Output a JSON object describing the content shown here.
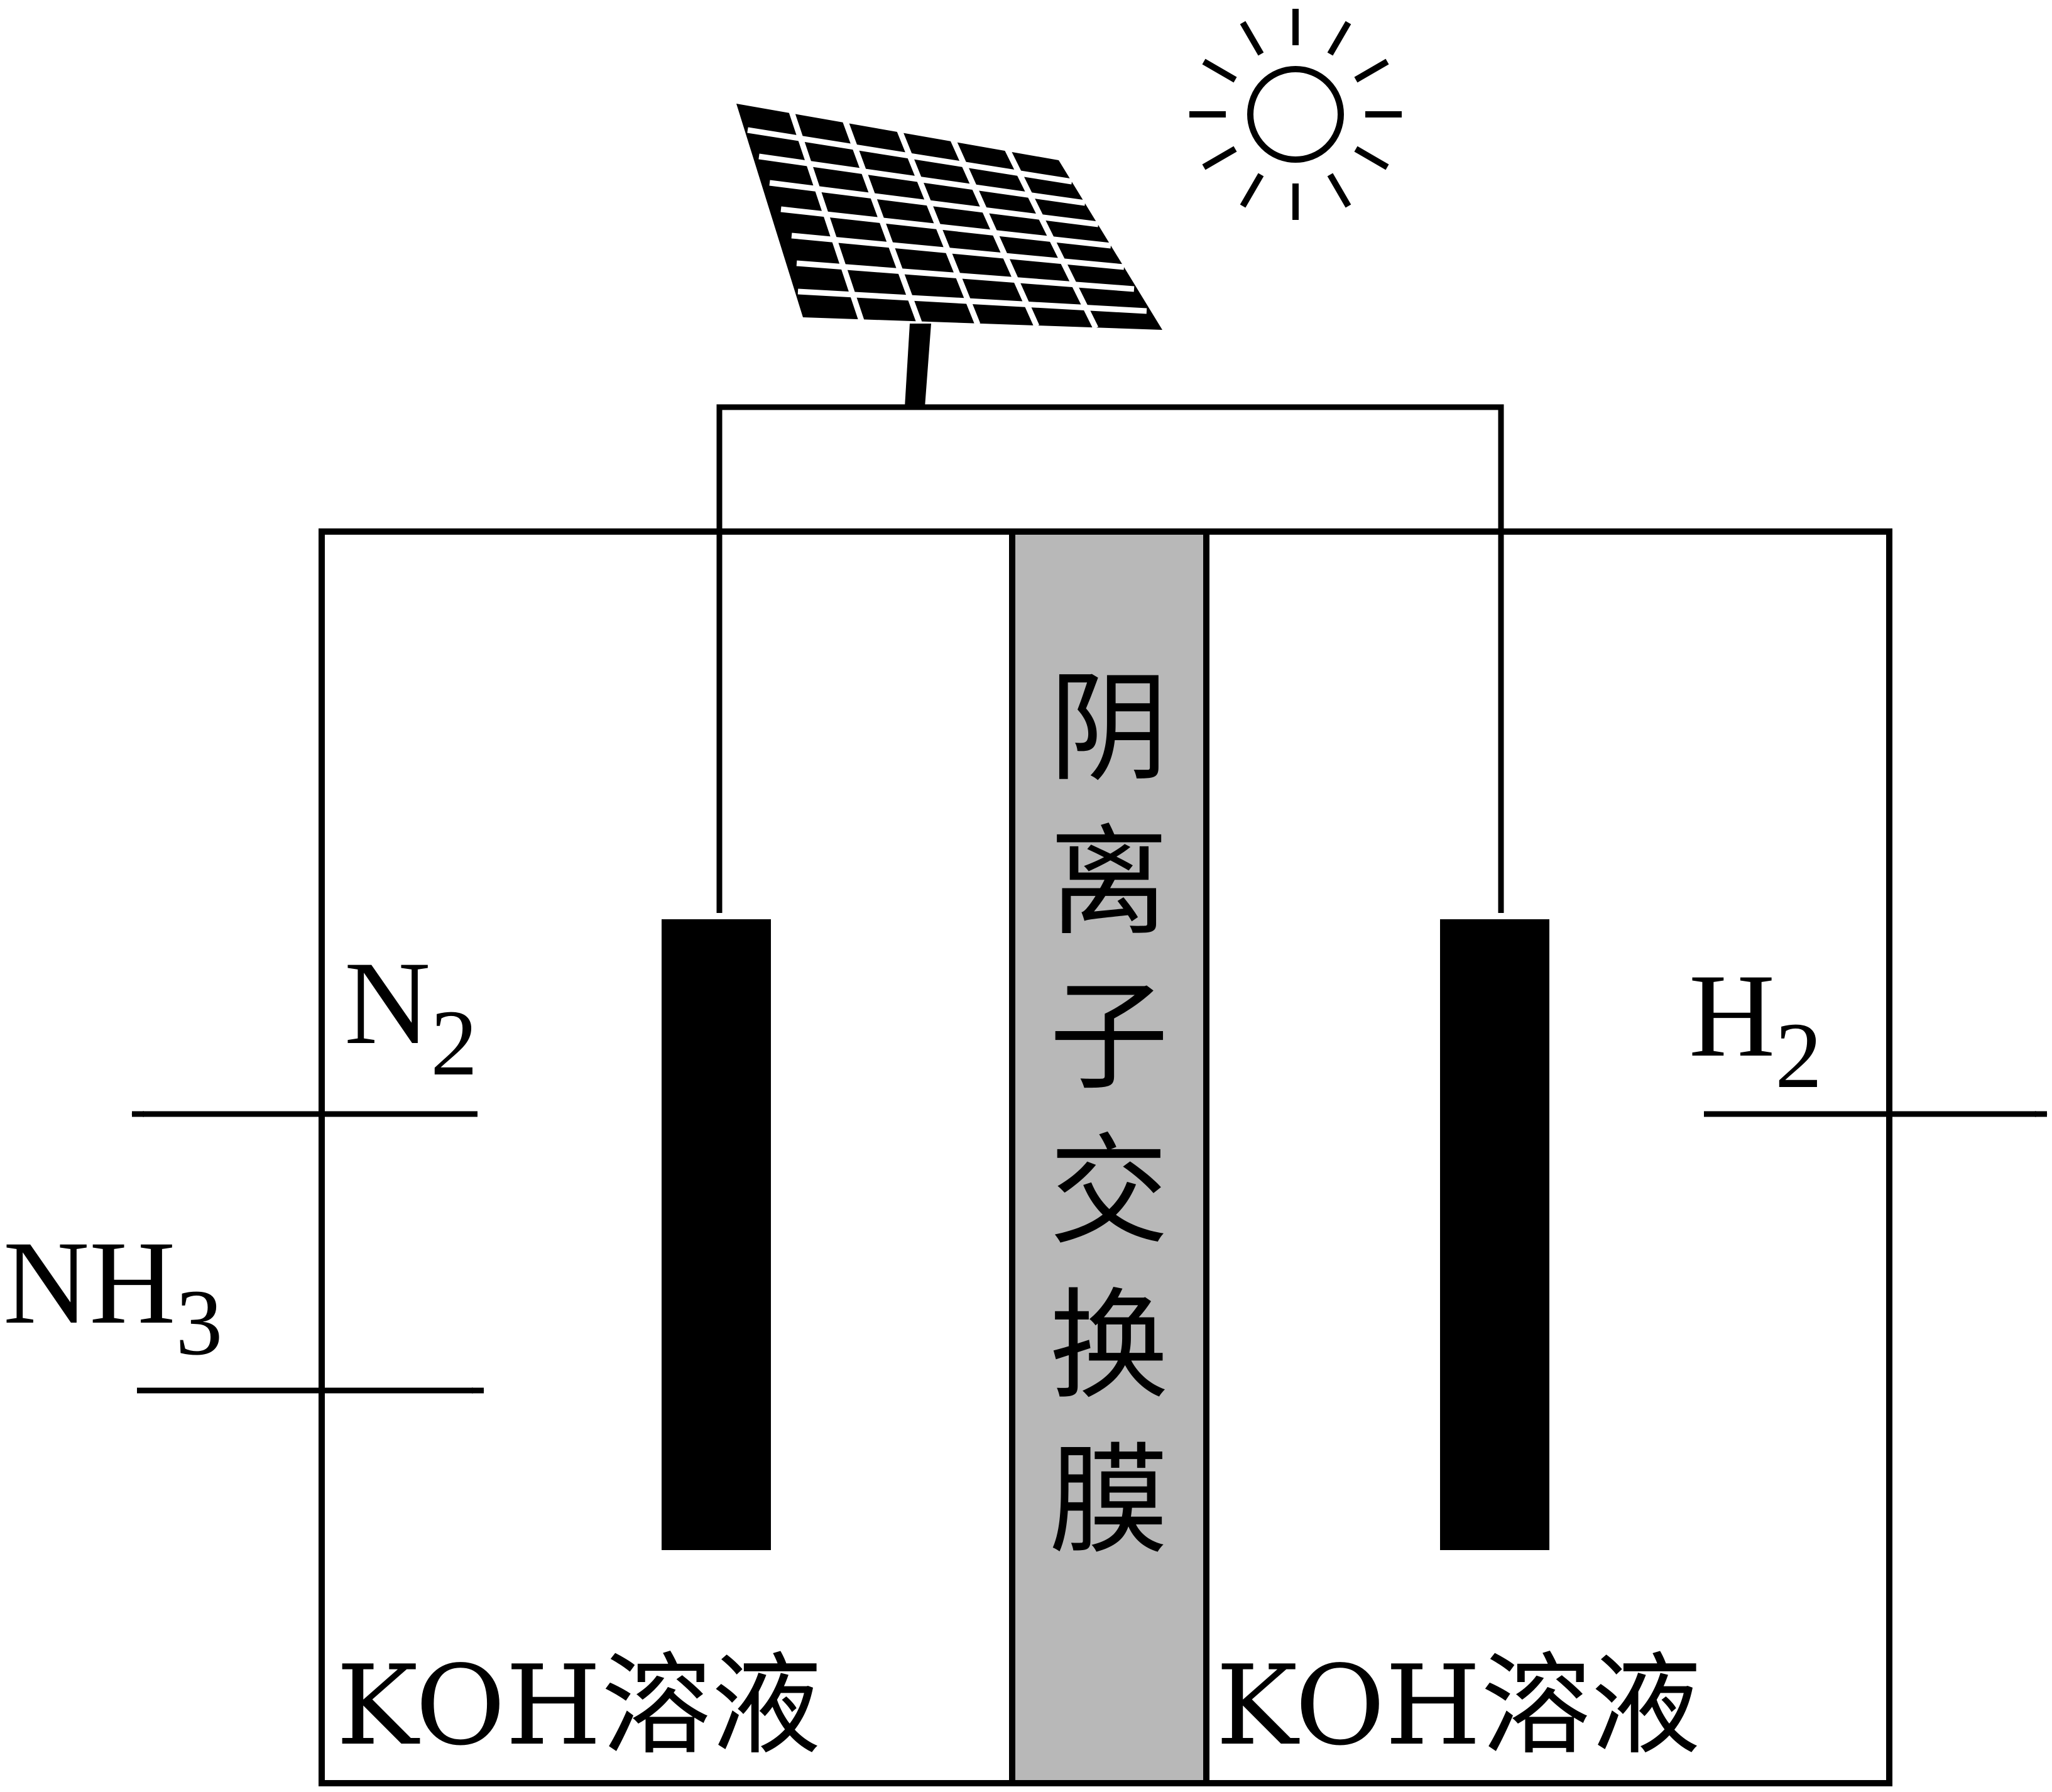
{
  "diagram": {
    "membrane_chars": [
      "阴",
      "离",
      "子",
      "交",
      "换",
      "膜"
    ],
    "left_solution": "KOH溶液",
    "right_solution": "KOH溶液",
    "gas_n2": {
      "base": "N",
      "sub": "2"
    },
    "gas_h2": {
      "base": "H",
      "sub": "2"
    },
    "gas_nh3": {
      "base": "NH",
      "sub": "3"
    },
    "icons": {
      "sun": "sun-icon",
      "solar_panel": "solar-panel-icon"
    },
    "colors": {
      "stroke": "#000000",
      "membrane_fill": "#b8b8b8",
      "electrode": "#000000",
      "background": "#ffffff"
    }
  }
}
